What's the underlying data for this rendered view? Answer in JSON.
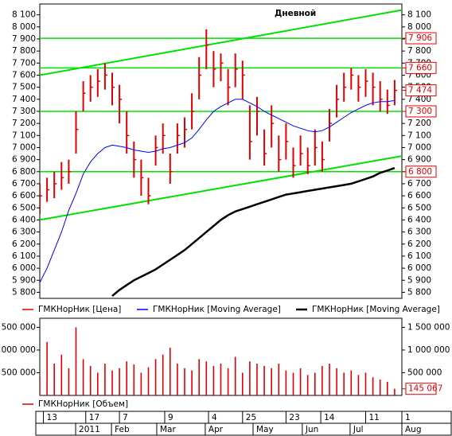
{
  "chart_data": [
    {
      "type": "ohlc",
      "title": "Дневной",
      "xlim": [
        0,
        100
      ],
      "ylim": [
        5750,
        8190
      ],
      "yticks": [
        {
          "value": 5800,
          "label": "5 800"
        },
        {
          "value": 5900,
          "label": "5 900"
        },
        {
          "value": 6000,
          "label": "6 000"
        },
        {
          "value": 6100,
          "label": "6 100"
        },
        {
          "value": 6200,
          "label": "6 200"
        },
        {
          "value": 6300,
          "label": "6 300"
        },
        {
          "value": 6400,
          "label": "6 400"
        },
        {
          "value": 6500,
          "label": "6 500"
        },
        {
          "value": 6600,
          "label": "6 600"
        },
        {
          "value": 6700,
          "label": "6 700"
        },
        {
          "value": 6800,
          "label": "6 800"
        },
        {
          "value": 6900,
          "label": "6 900"
        },
        {
          "value": 7000,
          "label": "7 000"
        },
        {
          "value": 7100,
          "label": "7 100"
        },
        {
          "value": 7200,
          "label": "7 200"
        },
        {
          "value": 7300,
          "label": "7 300"
        },
        {
          "value": 7400,
          "label": "7 400"
        },
        {
          "value": 7500,
          "label": "7 500"
        },
        {
          "value": 7600,
          "label": "7 600"
        },
        {
          "value": 7700,
          "label": "7 700"
        },
        {
          "value": 7800,
          "label": "7 800"
        },
        {
          "value": 7900,
          "label": "7 900"
        },
        {
          "value": 8000,
          "label": "8 000"
        },
        {
          "value": 8100,
          "label": "8 100"
        }
      ],
      "series": [
        {
          "name": "ГМКНорНик [Цена]",
          "color": "#e00000",
          "x": [
            0,
            2,
            4,
            6,
            8,
            10,
            12,
            14,
            16,
            18,
            20,
            22,
            24,
            26,
            28,
            30,
            32,
            34,
            36,
            38,
            40,
            42,
            44,
            46,
            48,
            50,
            52,
            54,
            56,
            58,
            60,
            62,
            64,
            66,
            68,
            70,
            72,
            74,
            76,
            78,
            80,
            82,
            84,
            86,
            88,
            90,
            92,
            94,
            96,
            98
          ],
          "values": [
            6600,
            6650,
            6700,
            6750,
            6800,
            7150,
            7450,
            7500,
            7550,
            7600,
            7500,
            7400,
            7100,
            6900,
            6750,
            6600,
            7000,
            7100,
            6800,
            7100,
            7150,
            7300,
            7600,
            7850,
            7650,
            7700,
            7500,
            7650,
            7600,
            7050,
            7300,
            6950,
            7200,
            6900,
            7050,
            6850,
            6950,
            6850,
            7000,
            6900,
            7200,
            7400,
            7500,
            7600,
            7500,
            7550,
            7500,
            7400,
            7350,
            7474
          ],
          "high": [
            6700,
            6750,
            6800,
            6880,
            6900,
            7300,
            7550,
            7600,
            7650,
            7700,
            7620,
            7520,
            7300,
            7050,
            6900,
            6750,
            7100,
            7200,
            6950,
            7200,
            7250,
            7450,
            7750,
            7980,
            7800,
            7780,
            7650,
            7780,
            7720,
            7350,
            7420,
            7150,
            7350,
            7100,
            7200,
            7000,
            7100,
            7000,
            7150,
            7050,
            7320,
            7520,
            7620,
            7660,
            7600,
            7650,
            7620,
            7550,
            7480,
            7560
          ],
          "low": [
            6450,
            6550,
            6580,
            6650,
            6700,
            6950,
            7300,
            7380,
            7420,
            7480,
            7350,
            7200,
            6950,
            6750,
            6600,
            6530,
            6850,
            6950,
            6700,
            6950,
            7000,
            7150,
            7400,
            7650,
            7500,
            7550,
            7350,
            7500,
            7400,
            6900,
            7100,
            6850,
            7000,
            6800,
            6900,
            6750,
            6850,
            6780,
            6850,
            6800,
            7050,
            7250,
            7380,
            7480,
            7380,
            7420,
            7350,
            7300,
            7280,
            7350
          ]
        },
        {
          "name": "ГМКНорНик [Moving Average]",
          "color": "#0000ff",
          "x": [
            0,
            2,
            4,
            6,
            8,
            10,
            12,
            14,
            16,
            18,
            20,
            22,
            24,
            26,
            28,
            30,
            32,
            34,
            36,
            38,
            40,
            42,
            44,
            46,
            48,
            50,
            52,
            54,
            56,
            58,
            60,
            62,
            64,
            66,
            68,
            70,
            72,
            74,
            76,
            78,
            80,
            82,
            84,
            86,
            88,
            90,
            92,
            94,
            96,
            98
          ],
          "values": [
            5880,
            6000,
            6150,
            6300,
            6480,
            6620,
            6780,
            6880,
            6950,
            7000,
            7020,
            7010,
            7000,
            6980,
            6970,
            6960,
            6970,
            6990,
            7000,
            7020,
            7040,
            7080,
            7150,
            7230,
            7300,
            7340,
            7370,
            7400,
            7400,
            7370,
            7340,
            7300,
            7270,
            7240,
            7210,
            7180,
            7160,
            7140,
            7130,
            7140,
            7170,
            7210,
            7250,
            7290,
            7320,
            7350,
            7370,
            7380,
            7380,
            7390
          ]
        },
        {
          "name": "ГМКНорНик [Moving Average]",
          "color": "#000000",
          "x": [
            20,
            22,
            24,
            26,
            28,
            30,
            32,
            34,
            36,
            38,
            40,
            42,
            44,
            46,
            48,
            50,
            52,
            54,
            56,
            58,
            60,
            62,
            64,
            66,
            68,
            70,
            72,
            74,
            76,
            78,
            80,
            82,
            84,
            86,
            88,
            90,
            92,
            94,
            96,
            98
          ],
          "values": [
            5770,
            5820,
            5860,
            5900,
            5930,
            5960,
            5990,
            6030,
            6070,
            6110,
            6150,
            6200,
            6250,
            6300,
            6350,
            6400,
            6440,
            6470,
            6490,
            6510,
            6530,
            6550,
            6570,
            6590,
            6610,
            6620,
            6630,
            6640,
            6650,
            6660,
            6670,
            6680,
            6690,
            6700,
            6720,
            6740,
            6760,
            6790,
            6810,
            6830
          ]
        }
      ],
      "level_color": "#00e000",
      "levels": [
        {
          "value": 7906,
          "label": "7 906"
        },
        {
          "value": 7660,
          "label": "7 660"
        },
        {
          "value": 7300,
          "label": "7 300"
        },
        {
          "value": 6800,
          "label": "6 800"
        }
      ],
      "trendlines": [
        {
          "color": "#00e000",
          "x": [
            0,
            100
          ],
          "values": [
            7600,
            8140
          ]
        },
        {
          "color": "#00e000",
          "x": [
            0,
            100
          ],
          "values": [
            6400,
            6930
          ]
        }
      ],
      "last_label": {
        "value": 7474,
        "label": "7 474"
      }
    },
    {
      "type": "bar",
      "xlim": [
        0,
        100
      ],
      "ylim": [
        0,
        1700000
      ],
      "yticks": [
        {
          "value": 500000,
          "label": "500 000"
        },
        {
          "value": 1000000,
          "label": "1 000 000"
        },
        {
          "value": 1500000,
          "label": "1 500 000"
        }
      ],
      "series": [
        {
          "name": "ГМКНорНик [Объем]",
          "color": "#e00000",
          "x": [
            0,
            2,
            4,
            6,
            8,
            10,
            12,
            14,
            16,
            18,
            20,
            22,
            24,
            26,
            28,
            30,
            32,
            34,
            36,
            38,
            40,
            42,
            44,
            46,
            48,
            50,
            52,
            54,
            56,
            58,
            60,
            62,
            64,
            66,
            68,
            70,
            72,
            74,
            76,
            78,
            80,
            82,
            84,
            86,
            88,
            90,
            92,
            94,
            96,
            98
          ],
          "values": [
            420000,
            1180000,
            700000,
            900000,
            600000,
            1500000,
            800000,
            650000,
            500000,
            700000,
            550000,
            600000,
            750000,
            680000,
            500000,
            620000,
            800000,
            900000,
            1050000,
            700000,
            600000,
            550000,
            800000,
            750000,
            650000,
            700000,
            600000,
            850000,
            500000,
            750000,
            700000,
            650000,
            600000,
            700000,
            550000,
            500000,
            600000,
            450000,
            500000,
            650000,
            700000,
            600000,
            500000,
            550000,
            450000,
            500000,
            400000,
            350000,
            300000,
            145067
          ]
        }
      ],
      "last_label": {
        "value": 145067,
        "label": "145 067"
      },
      "xticks": [
        {
          "value": 1,
          "label": "13"
        },
        {
          "value": 12.7,
          "label": "17"
        },
        {
          "value": 22,
          "label": "7"
        },
        {
          "value": 34.5,
          "label": "9"
        },
        {
          "value": 46.6,
          "label": "4"
        },
        {
          "value": 56,
          "label": "25"
        },
        {
          "value": 68,
          "label": "23"
        },
        {
          "value": 77.6,
          "label": "14"
        },
        {
          "value": 90,
          "label": "11"
        },
        {
          "value": 100,
          "label": "1"
        }
      ],
      "month_ticks": [
        {
          "value": 9.9,
          "label": "2011"
        },
        {
          "value": 19.8,
          "label": "Feb"
        },
        {
          "value": 32.3,
          "label": "Mar"
        },
        {
          "value": 45.7,
          "label": "Apr"
        },
        {
          "value": 58.9,
          "label": "May"
        },
        {
          "value": 72.5,
          "label": "Jun"
        },
        {
          "value": 85.7,
          "label": "Jul"
        },
        {
          "value": 100,
          "label": "Aug"
        }
      ]
    }
  ]
}
